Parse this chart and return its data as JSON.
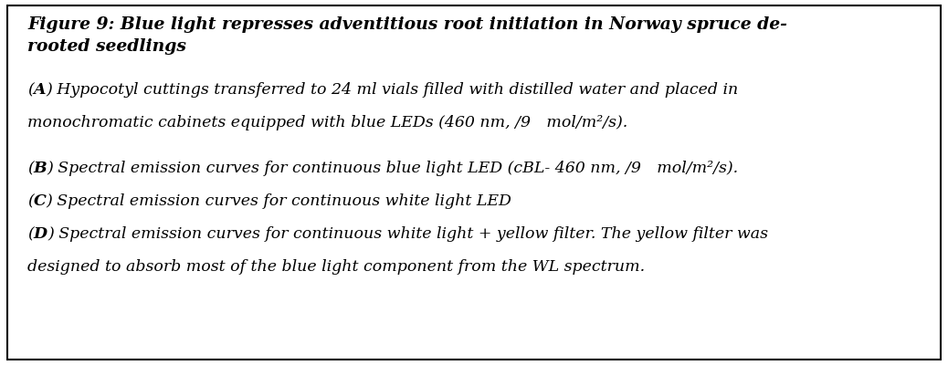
{
  "title_line1": "Figure 9: Blue light represses adventitious root initiation in Norway spruce de-",
  "title_line2": "rooted seedlings",
  "body_lines": [
    {
      "parts": [
        {
          "text": "(",
          "bold": false
        },
        {
          "text": "A",
          "bold": true
        },
        {
          "text": ") Hypocotyl cuttings transferred to 24 ml vials filled with distilled water and placed in",
          "bold": false
        }
      ],
      "extra_gap_after": false
    },
    {
      "parts": [
        {
          "text": "monochromatic cabinets equipped with blue LEDs (460 nm, /9 mol/m²/s).",
          "bold": false
        }
      ],
      "extra_gap_after": true
    },
    {
      "parts": [
        {
          "text": "(",
          "bold": false
        },
        {
          "text": "B",
          "bold": true
        },
        {
          "text": ") Spectral emission curves for continuous blue light LED (cBL- 460 nm, /9 mol/m²/s).",
          "bold": false
        }
      ],
      "extra_gap_after": false
    },
    {
      "parts": [
        {
          "text": "(",
          "bold": false
        },
        {
          "text": "C",
          "bold": true
        },
        {
          "text": ") Spectral emission curves for continuous white light LED",
          "bold": false
        }
      ],
      "extra_gap_after": false
    },
    {
      "parts": [
        {
          "text": "(",
          "bold": false
        },
        {
          "text": "D",
          "bold": true
        },
        {
          "text": ") Spectral emission curves for continuous white light + yellow filter. The yellow filter was",
          "bold": false
        }
      ],
      "extra_gap_after": false
    },
    {
      "parts": [
        {
          "text": "designed to absorb most of the blue light component from the WL spectrum.",
          "bold": false
        }
      ],
      "extra_gap_after": false
    }
  ],
  "background_color": "#ffffff",
  "border_color": "#000000",
  "text_color": "#000000",
  "title_fontsize": 13.5,
  "body_fontsize": 12.5,
  "figsize": [
    10.38,
    4.0
  ],
  "dpi": 100
}
